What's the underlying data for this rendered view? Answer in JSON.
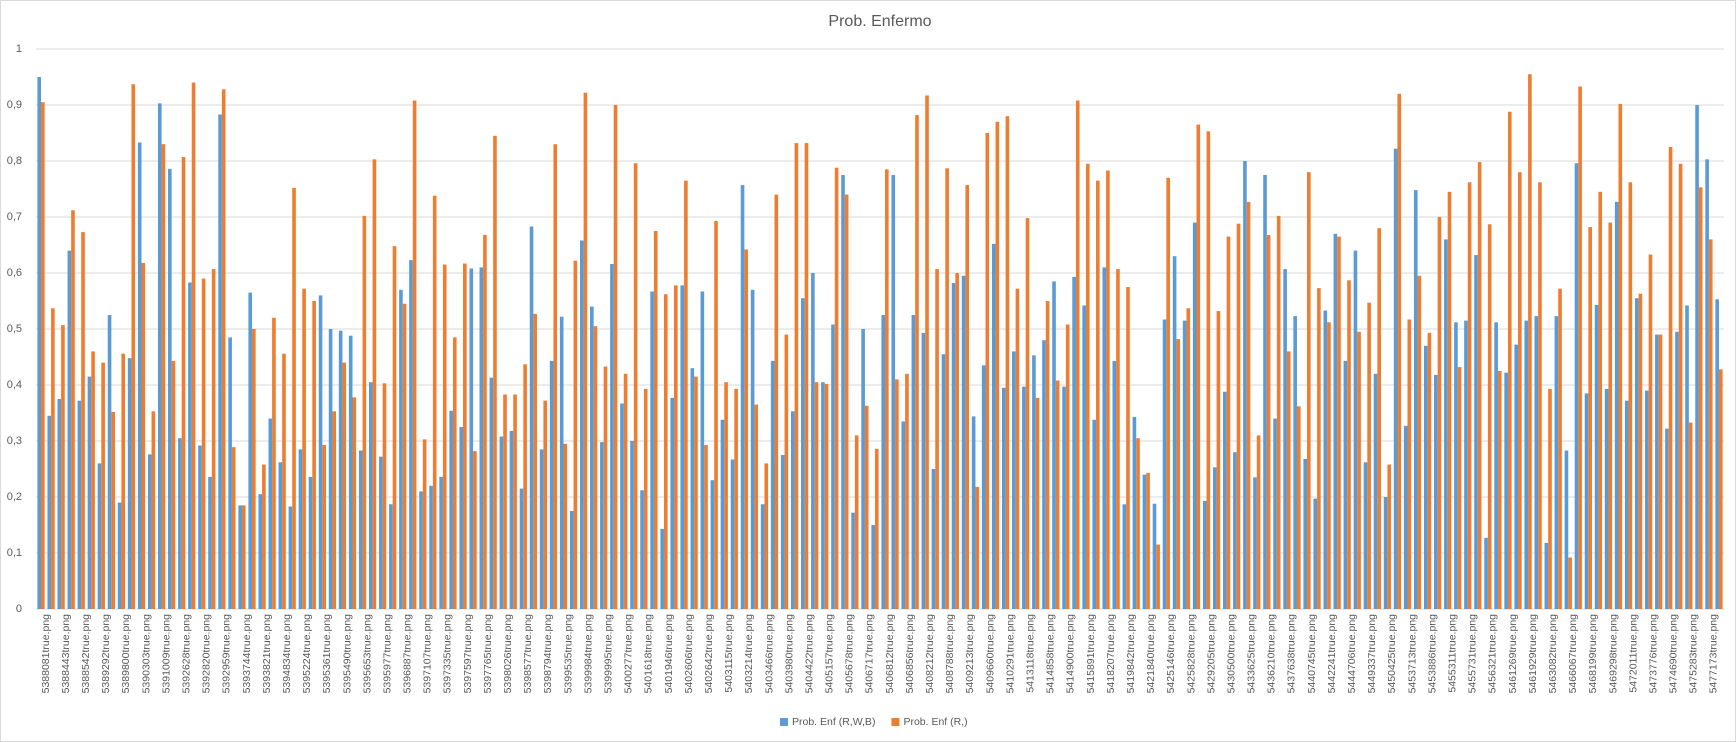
{
  "chart_data": {
    "type": "bar",
    "title": "Prob. Enfermo",
    "categories": [
      "5388081true.png",
      null,
      "5388443true.png",
      null,
      "5388542true.png",
      null,
      "5389292true.png",
      null,
      "5389800true.png",
      null,
      "5390303true.png",
      null,
      "5391009true.png",
      null,
      "5392628true.png",
      null,
      "5392820true.png",
      null,
      "5392959true.png",
      null,
      "5393744true.png",
      null,
      "5393821true.png",
      null,
      "5394834true.png",
      null,
      "5395224true.png",
      null,
      "5395361true.png",
      null,
      "5395490true.png",
      null,
      "5395653true.png",
      null,
      "5395977true.png",
      null,
      "5396887true.png",
      null,
      "5397107true.png",
      null,
      "5397335true.png",
      null,
      "5397597true.png",
      null,
      "5397765true.png",
      null,
      "5398026true.png",
      null,
      "5398577true.png",
      null,
      "5398794true.png",
      null,
      "5399535true.png",
      null,
      "5399984true.png",
      null,
      "5399995true.png",
      null,
      "5400277true.png",
      null,
      "5401618true.png",
      null,
      "5401946true.png",
      null,
      "5402606true.png",
      null,
      "5402642true.png",
      null,
      "5403115true.png",
      null,
      "5403214true.png",
      null,
      "5403466true.png",
      null,
      "5403980true.png",
      null,
      "5404422true.png",
      null,
      "5405157true.png",
      null,
      "5405678true.png",
      null,
      "5406717true.png",
      null,
      "5406812true.png",
      null,
      "5406856true.png",
      null,
      "5408212true.png",
      null,
      "5408788true.png",
      null,
      "5409213true.png",
      null,
      "5409660true.png",
      null,
      "5410291true.png",
      null,
      "5413118true.png",
      null,
      "5414858true.png",
      null,
      "5414900true.png",
      null,
      "5415891true.png",
      null,
      "5418207true.png",
      null,
      "5419842true.png",
      null,
      "5421840true.png",
      null,
      "5425146true.png",
      null,
      "5425828true.png",
      null,
      "5429205true.png",
      null,
      "5430500true.png",
      null,
      "5433625true.png",
      null,
      "5436210true.png",
      null,
      "5437638true.png",
      null,
      "5440745true.png",
      null,
      "5442241true.png",
      null,
      "5444706true.png",
      null,
      "5449337true.png",
      null,
      "5450425true.png",
      null,
      "5453713true.png",
      null,
      "5453886true.png",
      null,
      "5455311true.png",
      null,
      "5455731true.png",
      null,
      "5456321true.png",
      null,
      "5461269true.png",
      null,
      "5461929true.png",
      null,
      "5463082true.png",
      null,
      "5466067true.png",
      null,
      "5468199true.png",
      null,
      "5469298true.png",
      null,
      "5472011true.png",
      null,
      "5473776true.png",
      null,
      "5474690true.png",
      null,
      "5475283true.png",
      null,
      "5477173true.png",
      null
    ],
    "series": [
      {
        "name": "Prob. Enf (R,W,B)",
        "color": "#5b9bd5",
        "values": [
          0.95,
          0.345,
          0.375,
          0.64,
          0.372,
          0.415,
          0.26,
          0.525,
          0.19,
          0.448,
          0.833,
          0.276,
          0.903,
          0.786,
          0.305,
          0.583,
          0.292,
          0.236,
          0.883,
          0.485,
          0.185,
          0.565,
          0.205,
          0.34,
          0.262,
          0.183,
          0.285,
          0.236,
          0.56,
          0.5,
          0.497,
          0.488,
          0.283,
          0.405,
          0.272,
          0.187,
          0.57,
          0.623,
          0.21,
          0.22,
          0.236,
          0.354,
          0.325,
          0.608,
          0.61,
          0.413,
          0.308,
          0.318,
          0.215,
          0.683,
          0.285,
          0.443,
          0.522,
          0.175,
          0.658,
          0.54,
          0.298,
          0.616,
          0.367,
          0.3,
          0.212,
          0.567,
          0.143,
          0.377,
          0.578,
          0.43,
          0.567,
          0.23,
          0.338,
          0.267,
          0.757,
          0.57,
          0.187,
          0.443,
          0.275,
          0.353,
          0.555,
          0.6,
          0.405,
          0.508,
          0.775,
          0.172,
          0.5,
          0.15,
          0.525,
          0.775,
          0.335,
          0.525,
          0.493,
          0.25,
          0.455,
          0.582,
          0.595,
          0.344,
          0.435,
          0.652,
          0.395,
          0.46,
          0.397,
          0.453,
          0.48,
          0.585,
          0.397,
          0.593,
          0.542,
          0.338,
          0.61,
          0.443,
          0.187,
          0.343,
          0.24,
          0.188,
          0.517,
          0.63,
          0.515,
          0.69,
          0.193,
          0.253,
          0.388,
          0.28,
          0.8,
          0.235,
          0.775,
          0.34,
          0.607,
          0.523,
          0.268,
          0.197,
          0.533,
          0.67,
          0.443,
          0.64,
          0.262,
          0.42,
          0.2,
          0.822,
          0.327,
          0.748,
          0.47,
          0.418,
          0.66,
          0.512,
          0.515,
          0.632,
          0.127,
          0.512,
          0.422,
          0.472,
          0.515,
          0.523,
          0.118,
          0.523,
          0.283,
          0.796,
          0.385,
          0.543,
          0.393,
          0.727,
          0.372,
          0.555,
          0.39,
          0.49,
          0.322,
          0.495,
          0.542,
          0.9,
          0.803,
          0.553
        ]
      },
      {
        "name": "Prob. Enf (R,)",
        "color": "#ed7d31",
        "values": [
          0.905,
          0.537,
          0.507,
          0.712,
          0.673,
          0.46,
          0.44,
          0.352,
          0.456,
          0.937,
          0.618,
          0.353,
          0.83,
          0.443,
          0.807,
          0.94,
          0.59,
          0.607,
          0.928,
          0.289,
          0.185,
          0.5,
          0.258,
          0.52,
          0.456,
          0.752,
          0.572,
          0.55,
          0.293,
          0.353,
          0.44,
          0.378,
          0.702,
          0.803,
          0.403,
          0.648,
          0.545,
          0.908,
          0.303,
          0.738,
          0.615,
          0.485,
          0.617,
          0.282,
          0.668,
          0.845,
          0.383,
          0.383,
          0.437,
          0.527,
          0.372,
          0.83,
          0.295,
          0.622,
          0.922,
          0.505,
          0.433,
          0.9,
          0.42,
          0.796,
          0.393,
          0.675,
          0.562,
          0.578,
          0.765,
          0.415,
          0.293,
          0.693,
          0.405,
          0.393,
          0.642,
          0.365,
          0.26,
          0.74,
          0.49,
          0.832,
          0.832,
          0.405,
          0.402,
          0.788,
          0.74,
          0.31,
          0.363,
          0.286,
          0.785,
          0.41,
          0.42,
          0.882,
          0.917,
          0.607,
          0.787,
          0.6,
          0.757,
          0.218,
          0.85,
          0.87,
          0.88,
          0.572,
          0.698,
          0.377,
          0.55,
          0.408,
          0.508,
          0.908,
          0.795,
          0.765,
          0.783,
          0.607,
          0.575,
          0.305,
          0.243,
          0.115,
          0.77,
          0.482,
          0.537,
          0.865,
          0.853,
          0.532,
          0.665,
          0.688,
          0.727,
          0.31,
          0.668,
          0.702,
          0.46,
          0.362,
          0.78,
          0.573,
          0.512,
          0.665,
          0.587,
          0.495,
          0.547,
          0.68,
          0.258,
          0.92,
          0.517,
          0.595,
          0.493,
          0.7,
          0.745,
          0.432,
          0.762,
          0.798,
          0.687,
          0.425,
          0.888,
          0.78,
          0.955,
          0.762,
          0.393,
          0.572,
          0.092,
          0.933,
          0.682,
          0.745,
          0.69,
          0.902,
          0.762,
          0.563,
          0.633,
          0.49,
          0.825,
          0.795,
          0.333,
          0.753,
          0.66,
          0.428
        ]
      }
    ],
    "ylim": [
      0,
      1
    ],
    "yticks": [
      0,
      {
        "value": 0.1,
        "label": "0,1"
      },
      {
        "value": 0.2,
        "label": "0,2"
      },
      {
        "value": 0.3,
        "label": "0,3"
      },
      {
        "value": 0.4,
        "label": "0,4"
      },
      {
        "value": 0.5,
        "label": "0,5"
      },
      {
        "value": 0.6,
        "label": "0,6"
      },
      {
        "value": 0.7,
        "label": "0,7"
      },
      {
        "value": 0.8,
        "label": "0,8"
      },
      {
        "value": 0.9,
        "label": "0,9"
      },
      1
    ],
    "grid": true,
    "legend": "bottom"
  }
}
